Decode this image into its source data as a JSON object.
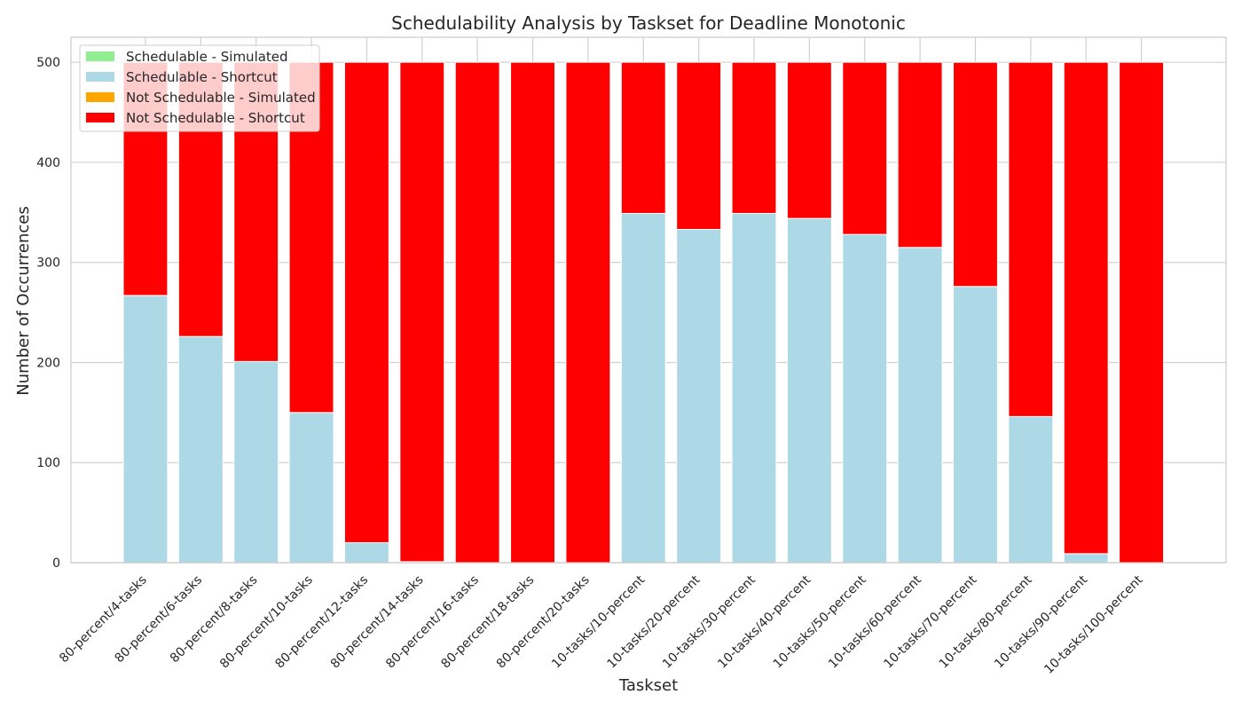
{
  "chart_data": {
    "type": "bar",
    "stacked": true,
    "title": "Schedulability Analysis by Taskset for Deadline Monotonic",
    "xlabel": "Taskset",
    "ylabel": "Number of Occurrences",
    "ylim": [
      0,
      525
    ],
    "yticks": [
      0,
      100,
      200,
      300,
      400,
      500
    ],
    "grid": true,
    "legend_position": "top-left",
    "categories": [
      "80-percent/4-tasks",
      "80-percent/6-tasks",
      "80-percent/8-tasks",
      "80-percent/10-tasks",
      "80-percent/12-tasks",
      "80-percent/14-tasks",
      "80-percent/16-tasks",
      "80-percent/18-tasks",
      "80-percent/20-tasks",
      "10-tasks/10-percent",
      "10-tasks/20-percent",
      "10-tasks/30-percent",
      "10-tasks/40-percent",
      "10-tasks/50-percent",
      "10-tasks/60-percent",
      "10-tasks/70-percent",
      "10-tasks/80-percent",
      "10-tasks/90-percent",
      "10-tasks/100-percent"
    ],
    "series": [
      {
        "name": "Schedulable - Simulated",
        "color": "#90ee90",
        "values": [
          0,
          0,
          0,
          0,
          0,
          0,
          0,
          0,
          0,
          0,
          0,
          0,
          0,
          0,
          0,
          0,
          0,
          0,
          0
        ]
      },
      {
        "name": "Schedulable - Shortcut",
        "color": "#add8e6",
        "values": [
          267,
          226,
          201,
          150,
          20,
          1,
          0,
          0,
          0,
          349,
          333,
          349,
          344,
          328,
          315,
          276,
          146,
          9,
          0
        ]
      },
      {
        "name": "Not Schedulable - Simulated",
        "color": "#ffa500",
        "values": [
          0,
          0,
          0,
          0,
          0,
          0,
          0,
          0,
          0,
          0,
          0,
          0,
          0,
          0,
          0,
          0,
          0,
          0,
          0
        ]
      },
      {
        "name": "Not Schedulable - Shortcut",
        "color": "#ff0000",
        "values": [
          233,
          274,
          299,
          350,
          480,
          499,
          500,
          500,
          500,
          151,
          167,
          151,
          156,
          172,
          185,
          224,
          354,
          491,
          500
        ]
      }
    ]
  }
}
